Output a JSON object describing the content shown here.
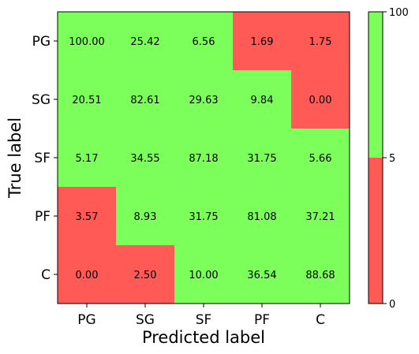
{
  "chart_data": {
    "type": "heatmap",
    "title": "",
    "xlabel": "Predicted label",
    "ylabel": "True label",
    "x_categories": [
      "PG",
      "SG",
      "SF",
      "PF",
      "C"
    ],
    "y_categories": [
      "PG",
      "SG",
      "SF",
      "PF",
      "C"
    ],
    "values": [
      [
        100.0,
        25.42,
        6.56,
        1.69,
        1.75
      ],
      [
        20.51,
        82.61,
        29.63,
        9.84,
        0.0
      ],
      [
        5.17,
        34.55,
        87.18,
        31.75,
        5.66
      ],
      [
        3.57,
        8.93,
        31.75,
        81.08,
        37.21
      ],
      [
        0.0,
        2.5,
        10.0,
        36.54,
        88.68
      ]
    ],
    "value_labels": [
      [
        "100.00",
        "25.42",
        "6.56",
        "1.69",
        "1.75"
      ],
      [
        "20.51",
        "82.61",
        "29.63",
        "9.84",
        "0.00"
      ],
      [
        "5.17",
        "34.55",
        "87.18",
        "31.75",
        "5.66"
      ],
      [
        "3.57",
        "8.93",
        "31.75",
        "81.08",
        "37.21"
      ],
      [
        "0.00",
        "2.50",
        "10.00",
        "36.54",
        "88.68"
      ]
    ],
    "colormap": {
      "threshold": 5,
      "below_color": "#ff5a55",
      "above_color": "#7cff5a",
      "ticks": [
        "0",
        "5",
        "100"
      ]
    },
    "grid": false
  }
}
